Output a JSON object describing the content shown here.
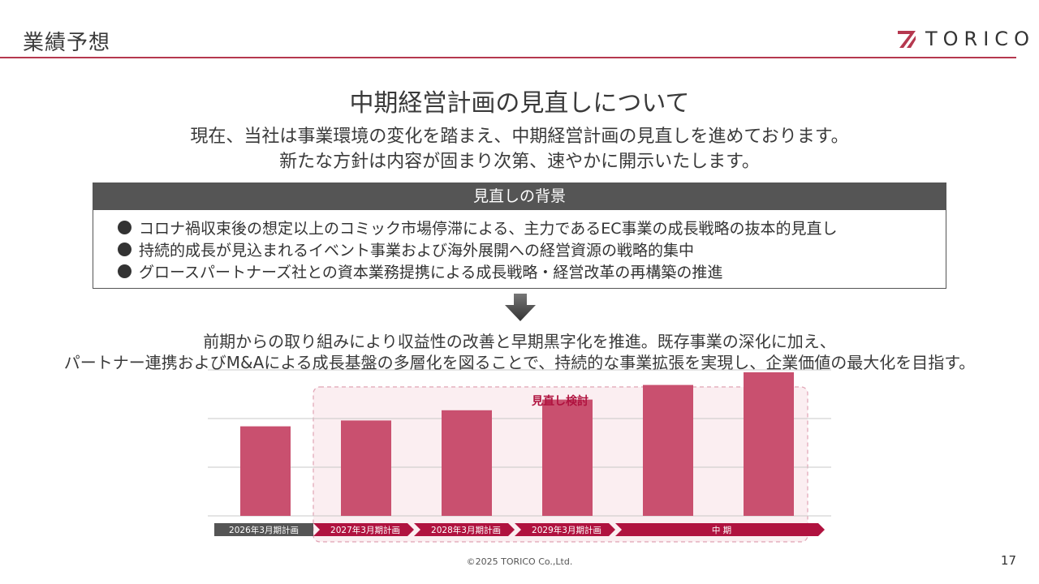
{
  "header": {
    "title": "業績予想",
    "logo_text": "TORICO",
    "accent_color": "#b5384f"
  },
  "main": {
    "title": "中期経営計画の見直しについて",
    "intro_lines": [
      "現在、当社は事業環境の変化を踏まえ、中期経営計画の見直しを進めております。",
      "新たな方針は内容が固まり次第、速やかに開示いたします。"
    ]
  },
  "background_box": {
    "header": "見直しの背景",
    "items": [
      "コロナ禍収束後の想定以上のコミック市場停滞による、主力であるEC事業の成長戦略の抜本的見直し",
      "持続的成長が見込まれるイベント事業および海外展開への経営資源の戦略的集中",
      "グロースパートナーズ社との資本業務提携による成長戦略・経営改革の再構築の推進"
    ]
  },
  "conclusion": {
    "lines": [
      "前期からの取り組みにより収益性の改善と早期黒字化を推進。既存事業の深化に加え、",
      "パートナー連携およびM&Aによる成長基盤の多層化を図ることで、持続的な事業拡張を実現し、企業価値の最大化を目指す。"
    ]
  },
  "chart_data": {
    "type": "bar",
    "annotation": "見直し検討",
    "values": [
      1.84,
      1.96,
      2.17,
      2.39,
      2.69,
      2.95
    ],
    "ylim": [
      0,
      3
    ],
    "grid": true,
    "bar_color": "#c9506f",
    "highlight_color": "#fbeef1",
    "timeline": [
      {
        "label": "2026年3月期計画",
        "color": "#555555"
      },
      {
        "label": "2027年3月期計画",
        "color": "#b0123f"
      },
      {
        "label": "2028年3月期計画",
        "color": "#b0123f"
      },
      {
        "label": "2029年3月期計画",
        "color": "#b0123f"
      },
      {
        "label": "中 期",
        "color": "#b0123f"
      }
    ]
  },
  "footer": {
    "copyright": "©2025 TORICO Co.,Ltd.",
    "page_number": "17"
  }
}
